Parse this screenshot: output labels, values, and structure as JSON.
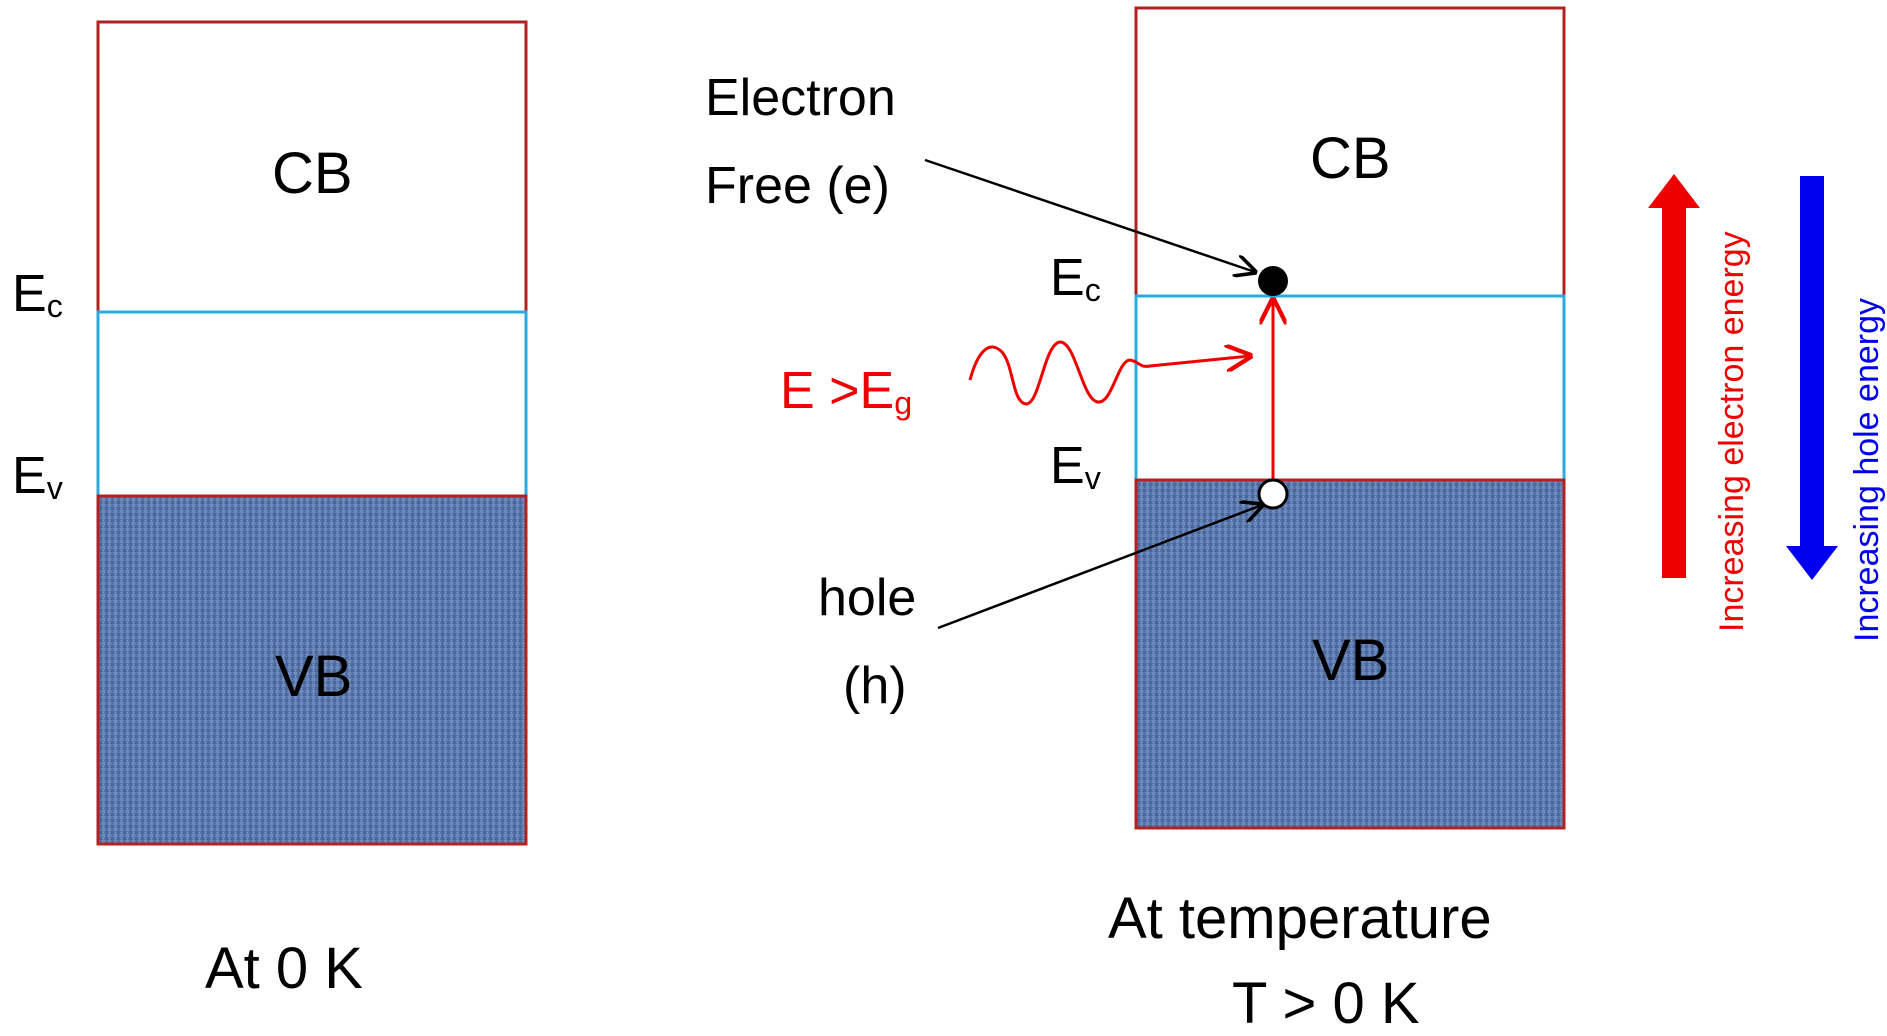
{
  "left_diagram": {
    "conduction_band_label": "CB",
    "valence_band_label": "VB",
    "ec_label": "E",
    "ec_sub": "c",
    "ev_label": "E",
    "ev_sub": "v",
    "caption": "At 0 K"
  },
  "right_diagram": {
    "conduction_band_label": "CB",
    "valence_band_label": "VB",
    "ec_label": "E",
    "ec_sub": "c",
    "ev_label": "E",
    "ev_sub": "v",
    "electron_label_line1": "Electron",
    "electron_label_line2": "Free (e)",
    "hole_label_line1": "hole",
    "hole_label_line2": "(h)",
    "photon_label": "E >E",
    "photon_sub": "g",
    "caption_line1": "At temperature",
    "caption_line2": "T > 0 K"
  },
  "energy_arrows": {
    "electron_energy_label": "Increasing electron energy",
    "hole_energy_label": "Increasing hole energy"
  },
  "colors": {
    "band_border": "#b22222",
    "gap_border": "#29abe2",
    "valence_fill": "#5b79ad",
    "photon": "#ee0000",
    "electron_arrow": "#ee0000",
    "hole_arrow": "#0000ee"
  }
}
